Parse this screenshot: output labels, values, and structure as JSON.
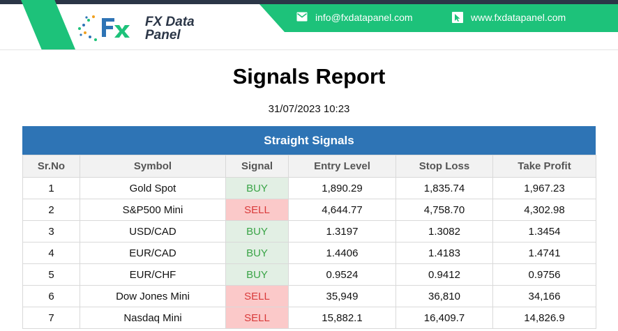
{
  "header": {
    "brand_line1": "FX Data",
    "brand_line2": "Panel",
    "email": "info@fxdatapanel.com",
    "website": "www.fxdatapanel.com",
    "colors": {
      "green": "#1dc27a",
      "dark": "#2b3647",
      "blue": "#2e74b5"
    }
  },
  "report": {
    "title": "Signals Report",
    "timestamp": "31/07/2023 10:23"
  },
  "section": {
    "title": "Straight Signals"
  },
  "table": {
    "columns": [
      "Sr.No",
      "Symbol",
      "Signal",
      "Entry Level",
      "Stop Loss",
      "Take Profit"
    ],
    "rows": [
      {
        "sr": "1",
        "symbol": "Gold Spot",
        "signal": "BUY",
        "entry": "1,890.29",
        "stop": "1,835.74",
        "take": "1,967.23"
      },
      {
        "sr": "2",
        "symbol": "S&P500 Mini",
        "signal": "SELL",
        "entry": "4,644.77",
        "stop": "4,758.70",
        "take": "4,302.98"
      },
      {
        "sr": "3",
        "symbol": "USD/CAD",
        "signal": "BUY",
        "entry": "1.3197",
        "stop": "1.3082",
        "take": "1.3454"
      },
      {
        "sr": "4",
        "symbol": "EUR/CAD",
        "signal": "BUY",
        "entry": "1.4406",
        "stop": "1.4183",
        "take": "1.4741"
      },
      {
        "sr": "5",
        "symbol": "EUR/CHF",
        "signal": "BUY",
        "entry": "0.9524",
        "stop": "0.9412",
        "take": "0.9756"
      },
      {
        "sr": "6",
        "symbol": "Dow Jones Mini",
        "signal": "SELL",
        "entry": "35,949",
        "stop": "36,810",
        "take": "34,166"
      },
      {
        "sr": "7",
        "symbol": "Nasdaq Mini",
        "signal": "SELL",
        "entry": "15,882.1",
        "stop": "16,409.7",
        "take": "14,826.9"
      }
    ]
  }
}
